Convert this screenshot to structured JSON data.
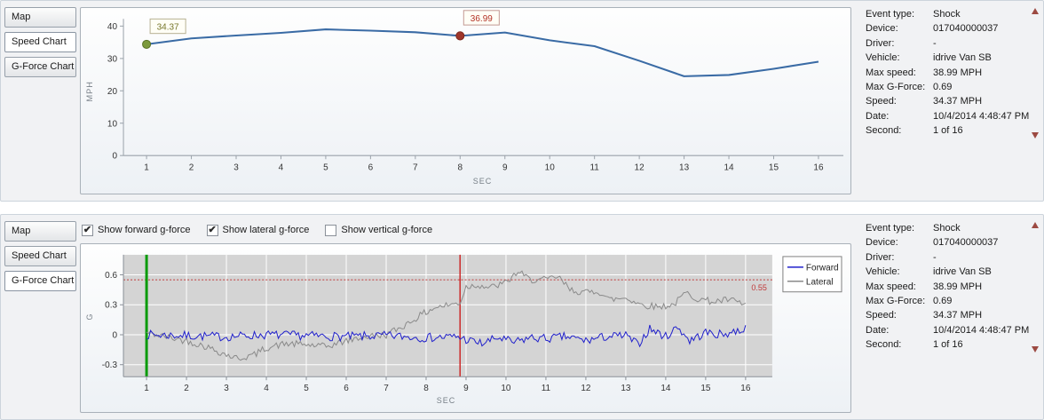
{
  "top_panel": {
    "tabs": [
      {
        "label": "Map",
        "selected": false
      },
      {
        "label": "Speed Chart",
        "selected": true
      },
      {
        "label": "G-Force Chart",
        "selected": false
      }
    ],
    "info_rows": [
      {
        "label": "Event type:",
        "value": "Shock"
      },
      {
        "label": "Device:",
        "value": "017040000037"
      },
      {
        "label": "Driver:",
        "value": "-"
      },
      {
        "label": "Vehicle:",
        "value": "idrive Van SB"
      },
      {
        "label": "Max speed:",
        "value": "38.99 MPH"
      },
      {
        "label": "Max G-Force:",
        "value": "0.69"
      },
      {
        "label": "Speed:",
        "value": "34.37 MPH"
      },
      {
        "label": "Date:",
        "value": "10/4/2014 4:48:47 PM"
      },
      {
        "label": "Second:",
        "value": "1 of 16"
      }
    ]
  },
  "bottom_panel": {
    "tabs": [
      {
        "label": "Map",
        "selected": false
      },
      {
        "label": "Speed Chart",
        "selected": false
      },
      {
        "label": "G-Force Chart",
        "selected": true
      }
    ],
    "checkboxes": [
      {
        "label": "Show forward g-force",
        "checked": true
      },
      {
        "label": "Show lateral g-force",
        "checked": true
      },
      {
        "label": "Show vertical g-force",
        "checked": false
      }
    ],
    "info_rows": [
      {
        "label": "Event type:",
        "value": "Shock"
      },
      {
        "label": "Device:",
        "value": "017040000037"
      },
      {
        "label": "Driver:",
        "value": "-"
      },
      {
        "label": "Vehicle:",
        "value": "idrive Van SB"
      },
      {
        "label": "Max speed:",
        "value": "38.99 MPH"
      },
      {
        "label": "Max G-Force:",
        "value": "0.69"
      },
      {
        "label": "Speed:",
        "value": "34.37 MPH"
      },
      {
        "label": "Date:",
        "value": "10/4/2014 4:48:47 PM"
      },
      {
        "label": "Second:",
        "value": "1 of 16"
      }
    ]
  },
  "chart_data": [
    {
      "type": "line",
      "name": "speed-chart",
      "xlabel": "SEC",
      "ylabel": "MPH",
      "x": [
        1,
        2,
        3,
        4,
        5,
        6,
        7,
        8,
        9,
        10,
        11,
        12,
        13,
        14,
        15,
        16
      ],
      "values": [
        34.37,
        36.2,
        37.1,
        37.9,
        38.99,
        38.6,
        38.1,
        36.99,
        38.0,
        35.6,
        33.8,
        29.3,
        24.5,
        24.9,
        26.8,
        29.0
      ],
      "ylim": [
        0,
        40
      ],
      "yticks": [
        0,
        10,
        20,
        30,
        40
      ],
      "line_color": "#3a6ba5",
      "markers": [
        {
          "x": 1,
          "y": 34.37,
          "label": "34.37",
          "color": "#7c9a3c",
          "edge": "#5a7326",
          "text_color": "#76762a",
          "border_color": "#b8b294"
        },
        {
          "x": 8,
          "y": 36.99,
          "label": "36.99",
          "color": "#9e352a",
          "edge": "#7c2a20",
          "text_color": "#b33226",
          "border_color": "#c49a94"
        }
      ]
    },
    {
      "type": "line",
      "name": "gforce-chart",
      "xlabel": "SEC",
      "ylabel": "G",
      "xticks": [
        1,
        2,
        3,
        4,
        5,
        6,
        7,
        8,
        9,
        10,
        11,
        12,
        13,
        14,
        15,
        16
      ],
      "ylim": [
        -0.42,
        0.8
      ],
      "yticks": [
        -0.3,
        0,
        0.3,
        0.6
      ],
      "plot_bg": "#d4d4d4",
      "grid": "white",
      "threshold": {
        "value": 0.55,
        "label": "0.55",
        "color": "#c03a3a"
      },
      "cursors": [
        {
          "x": 1,
          "color": "#0a9b0a",
          "width": 3
        },
        {
          "x": 8.85,
          "color": "#cc2a2a",
          "width": 1.5
        }
      ],
      "legend": {
        "position": "right",
        "entries": [
          {
            "label": "Forward",
            "color": "#2020cc"
          },
          {
            "label": "Lateral",
            "color": "#8a8a8a"
          }
        ]
      },
      "series": [
        {
          "name": "Forward",
          "color": "#2020cc",
          "noise_amp": 0.045,
          "seed": 7,
          "trend": [
            [
              1,
              0
            ],
            [
              2,
              -0.01
            ],
            [
              3,
              -0.02
            ],
            [
              4,
              0
            ],
            [
              5,
              -0.01
            ],
            [
              6,
              -0.02
            ],
            [
              7,
              -0.01
            ],
            [
              8,
              -0.03
            ],
            [
              8.8,
              -0.02
            ],
            [
              9,
              -0.05
            ],
            [
              9.4,
              -0.09
            ],
            [
              9.8,
              -0.03
            ],
            [
              10.2,
              -0.08
            ],
            [
              10.6,
              -0.03
            ],
            [
              11,
              -0.04
            ],
            [
              11.5,
              -0.02
            ],
            [
              12,
              -0.06
            ],
            [
              12.5,
              -0.02
            ],
            [
              13,
              -0.01
            ],
            [
              13.3,
              -0.1
            ],
            [
              13.6,
              0.06
            ],
            [
              14,
              -0.02
            ],
            [
              14.3,
              0.08
            ],
            [
              14.6,
              -0.06
            ],
            [
              15,
              0.02
            ],
            [
              15.4,
              0
            ],
            [
              16,
              0.06
            ]
          ]
        },
        {
          "name": "Lateral",
          "color": "#8a8a8a",
          "noise_amp": 0.035,
          "seed": 42,
          "trend": [
            [
              1,
              0.02
            ],
            [
              1.6,
              -0.03
            ],
            [
              2,
              -0.06
            ],
            [
              2.5,
              -0.12
            ],
            [
              3,
              -0.2
            ],
            [
              3.3,
              -0.24
            ],
            [
              3.7,
              -0.2
            ],
            [
              4,
              -0.13
            ],
            [
              4.5,
              -0.09
            ],
            [
              5,
              -0.1
            ],
            [
              5.5,
              -0.12
            ],
            [
              6,
              -0.06
            ],
            [
              6.5,
              -0.02
            ],
            [
              7,
              0
            ],
            [
              7.4,
              0.08
            ],
            [
              7.8,
              0.18
            ],
            [
              8.2,
              0.27
            ],
            [
              8.6,
              0.3
            ],
            [
              8.85,
              0.32
            ],
            [
              9,
              0.48
            ],
            [
              9.3,
              0.5
            ],
            [
              9.6,
              0.47
            ],
            [
              10,
              0.52
            ],
            [
              10.3,
              0.63
            ],
            [
              10.6,
              0.55
            ],
            [
              11,
              0.55
            ],
            [
              11.3,
              0.58
            ],
            [
              11.6,
              0.45
            ],
            [
              12,
              0.42
            ],
            [
              12.3,
              0.44
            ],
            [
              12.6,
              0.35
            ],
            [
              13,
              0.37
            ],
            [
              13.4,
              0.3
            ],
            [
              13.8,
              0.28
            ],
            [
              14.2,
              0.3
            ],
            [
              14.5,
              0.42
            ],
            [
              14.8,
              0.36
            ],
            [
              15.2,
              0.33
            ],
            [
              15.6,
              0.35
            ],
            [
              16,
              0.3
            ]
          ]
        }
      ]
    }
  ]
}
